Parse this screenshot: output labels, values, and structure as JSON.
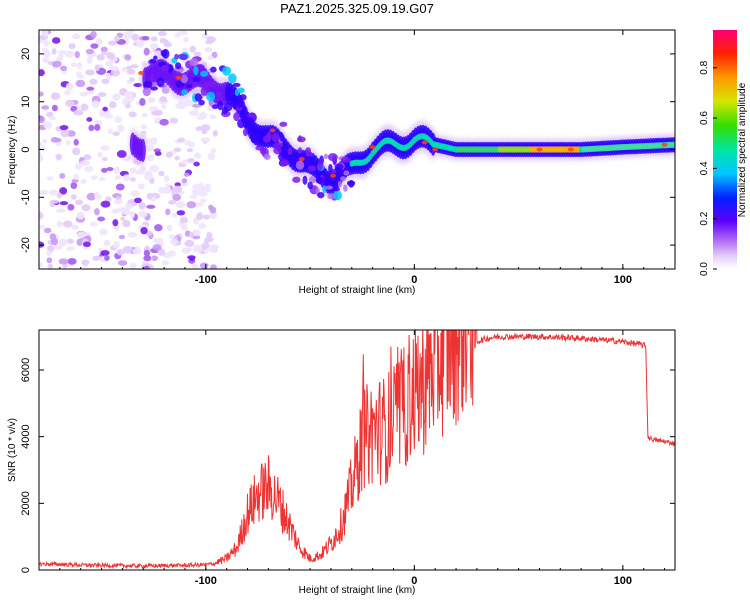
{
  "title": "PAZ1.2025.325.09.19.G07",
  "chart_data": [
    {
      "type": "heatmap",
      "xlabel": "Height of straight line (km)",
      "ylabel": "Frequency (Hz)",
      "xlim": [
        -180,
        125
      ],
      "ylim": [
        -25,
        25
      ],
      "xticks": [
        -100,
        0,
        100
      ],
      "yticks": [
        -20,
        -10,
        0,
        10,
        20
      ],
      "colorbar": {
        "label": "Normalized spectral amplitude",
        "range": [
          0,
          0.95
        ],
        "ticks": [
          "0.0",
          "0.2",
          "0.4",
          "0.6",
          "0.8"
        ]
      },
      "description_points": {
        "ridge_x": [
          -130,
          -115,
          -100,
          -90,
          -80,
          -70,
          -60,
          -50,
          -40,
          -30,
          -20,
          -10,
          0,
          10,
          20,
          40,
          60,
          80,
          100,
          125
        ],
        "ridge_freq": [
          16,
          15,
          14,
          12,
          6,
          2,
          0,
          -4,
          -6,
          -4,
          0,
          1,
          2,
          1,
          0,
          0,
          0,
          0,
          0.5,
          1
        ]
      }
    },
    {
      "type": "line",
      "xlabel": "Height of straight line (km)",
      "ylabel": "SNR (10 * v/v)",
      "xlim": [
        -180,
        125
      ],
      "ylim": [
        0,
        7200
      ],
      "xticks": [
        -100,
        0,
        100
      ],
      "yticks": [
        0,
        2000,
        4000,
        6000
      ],
      "series": [
        {
          "name": "SNR",
          "color": "#ee3333",
          "x": [
            -180,
            -170,
            -160,
            -150,
            -140,
            -130,
            -120,
            -110,
            -100,
            -95,
            -90,
            -85,
            -80,
            -75,
            -70,
            -65,
            -60,
            -55,
            -50,
            -45,
            -40,
            -35,
            -30,
            -25,
            -20,
            -15,
            -10,
            -5,
            0,
            5,
            10,
            15,
            20,
            25,
            30,
            35,
            40,
            50,
            60,
            70,
            80,
            90,
            100,
            105,
            110,
            111,
            112,
            113,
            115,
            120,
            125
          ],
          "y": [
            180,
            170,
            150,
            140,
            130,
            120,
            130,
            140,
            160,
            200,
            300,
            600,
            1500,
            2000,
            2200,
            1800,
            1200,
            600,
            300,
            400,
            700,
            1200,
            2200,
            3400,
            3700,
            3700,
            3900,
            4300,
            4800,
            5000,
            5500,
            5900,
            6300,
            6700,
            6850,
            6950,
            7000,
            7000,
            7000,
            6980,
            6950,
            6900,
            6850,
            6800,
            6750,
            6700,
            4000,
            3950,
            3900,
            3850,
            3800
          ]
        }
      ]
    }
  ]
}
